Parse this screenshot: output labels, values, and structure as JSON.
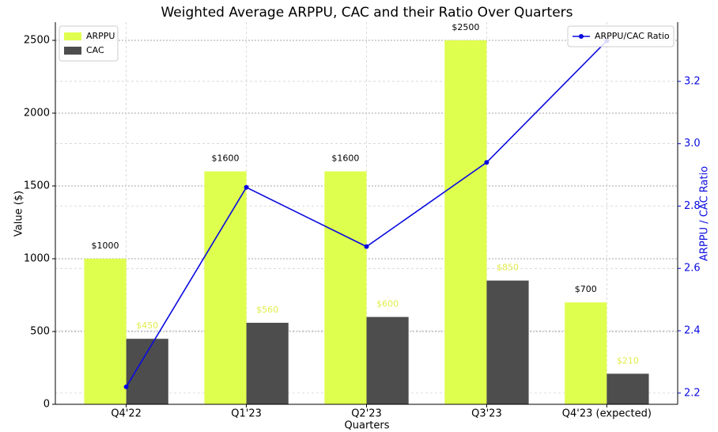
{
  "chart_data": {
    "type": "bar_line",
    "title": "Weighted Average ARPPU, CAC and their Ratio Over Quarters",
    "xlabel": "Quarters",
    "ylabel": "Value ($)",
    "y2label": "ARPPU / CAC Ratio",
    "categories": [
      "Q4'22",
      "Q1'23",
      "Q2'23",
      "Q3'23",
      "Q4'23 (expected)"
    ],
    "series": [
      {
        "name": "ARPPU",
        "type": "bar",
        "color": "#dfff4f",
        "label_color": "#000000",
        "values": [
          1000,
          1600,
          1600,
          2500,
          700
        ],
        "value_labels": [
          "$1000",
          "$1600",
          "$1600",
          "$2500",
          "$700"
        ]
      },
      {
        "name": "CAC",
        "type": "bar",
        "color": "#4d4d4d",
        "label_color": "#e2ec4a",
        "values": [
          450,
          560,
          600,
          850,
          210
        ],
        "value_labels": [
          "$450",
          "$560",
          "$600",
          "$850",
          "$210"
        ]
      },
      {
        "name": "ARPPU/CAC Ratio",
        "type": "line",
        "axis": "y2",
        "color": "#0a0adf",
        "values": [
          2.22,
          2.86,
          2.67,
          2.94,
          3.33
        ]
      }
    ],
    "ylim": [
      0,
      2625
    ],
    "yticks": [
      0,
      500,
      1000,
      1500,
      2000,
      2500
    ],
    "y2lim": [
      2.164,
      3.39
    ],
    "y2ticks": [
      2.2,
      2.4,
      2.6,
      2.8,
      {
        "value": 3,
        "label": "3.0"
      },
      3.2
    ],
    "grid": true,
    "legend": "upper left",
    "legend_y2": "upper right"
  }
}
